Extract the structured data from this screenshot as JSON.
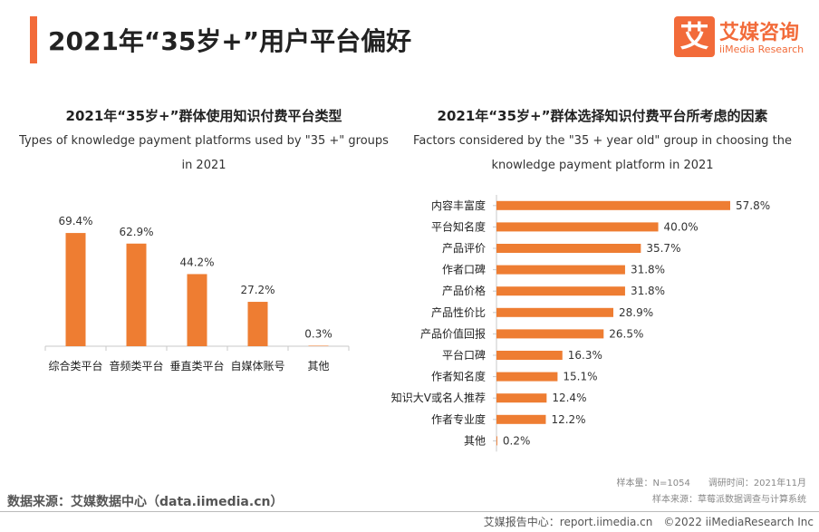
{
  "header": {
    "title": "2021年“35岁+”用户平台偏好"
  },
  "logo": {
    "mark": "艾",
    "cn": "艾媒咨询",
    "en": "iiMedia Research"
  },
  "chart_data": [
    {
      "type": "bar",
      "title": "2021年“35岁+”群体使用知识付费平台类型",
      "subtitle": "Types of knowledge payment platforms used by \"35 +\" groups in 2021",
      "categories": [
        "综合类平台",
        "音频类平台",
        "垂直类平台",
        "自媒体账号",
        "其他"
      ],
      "values": [
        69.4,
        62.9,
        44.2,
        27.2,
        0.3
      ],
      "labels": [
        "69.4%",
        "62.9%",
        "44.2%",
        "27.2%",
        "0.3%"
      ],
      "unit": "%",
      "ylim": [
        0,
        100
      ],
      "color": "#ee7d32"
    },
    {
      "type": "bar",
      "orientation": "horizontal",
      "title": "2021年“35岁+”群体选择知识付费平台所考虑的因素",
      "subtitle": "Factors considered by the \"35 + year old\" group in choosing the knowledge payment platform in 2021",
      "categories": [
        "内容丰富度",
        "平台知名度",
        "产品评价",
        "作者口碑",
        "产品价格",
        "产品性价比",
        "产品价值回报",
        "平台口碑",
        "作者知名度",
        "知识大V或名人推荐",
        "作者专业度",
        "其他"
      ],
      "values": [
        57.8,
        40.0,
        35.7,
        31.8,
        31.8,
        28.9,
        26.5,
        16.3,
        15.1,
        12.4,
        12.2,
        0.2
      ],
      "labels": [
        "57.8%",
        "40.0%",
        "35.7%",
        "31.8%",
        "31.8%",
        "28.9%",
        "26.5%",
        "16.3%",
        "15.1%",
        "12.4%",
        "12.2%",
        "0.2%"
      ],
      "unit": "%",
      "xlim": [
        0,
        60
      ],
      "color": "#ee7d32"
    }
  ],
  "meta": {
    "sample_line": "样本量：N=1054　　调研时间：2021年11月",
    "source_line": "样本来源：草莓派数据调查与计算系统"
  },
  "source": "数据来源：艾媒数据中心（data.iimedia.cn）",
  "footer": "艾媒报告中心：report.iimedia.cn　©2022  iiMediaResearch Inc"
}
